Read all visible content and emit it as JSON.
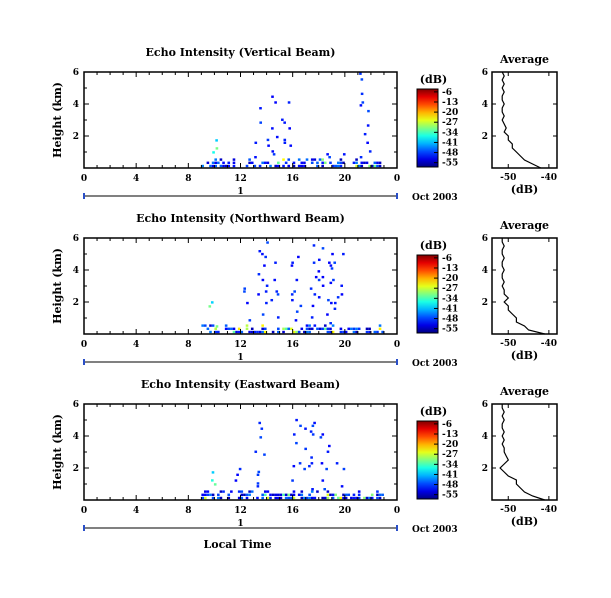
{
  "chart_data": {
    "type": "heatmap",
    "xlabel": "Local Time",
    "date_label": "Oct 2003",
    "day_label": "1",
    "x_ticks": [
      "0",
      "4",
      "8",
      "12",
      "16",
      "20",
      "0"
    ],
    "xlim": [
      0,
      24
    ],
    "ylabel": "Height (km)",
    "y_ticks": [
      "2",
      "4",
      "6"
    ],
    "ylim": [
      0,
      6
    ],
    "colorbar": {
      "unit": "(dB)",
      "ticks": [
        "-6",
        "-13",
        "-20",
        "-27",
        "-34",
        "-41",
        "-48",
        "-55"
      ],
      "range": [
        -58,
        -4
      ]
    },
    "profile": {
      "title": "Average",
      "xlabel": "(dB)",
      "x_ticks": [
        "-50",
        "-40"
      ],
      "xlim": [
        -54,
        -38
      ],
      "y_ticks": [
        "2",
        "4",
        "6"
      ],
      "ylim": [
        0,
        6
      ]
    },
    "panels": [
      {
        "title": "Echo Intensity (Vertical Beam)",
        "profile_heights": [
          0.0,
          0.25,
          0.5,
          0.75,
          1.0,
          1.25,
          1.5,
          1.75,
          2.0,
          2.25,
          2.5,
          2.75,
          3.0,
          3.25,
          3.5,
          3.75,
          4.0,
          4.25,
          4.5,
          4.75,
          5.0,
          5.25,
          5.5,
          5.75,
          6.0
        ],
        "profile_values": [
          -42,
          -44,
          -46,
          -47,
          -48,
          -49,
          -49,
          -50,
          -50,
          -51,
          -50.5,
          -51,
          -51.5,
          -51,
          -51.5,
          -51.5,
          -51,
          -51.5,
          -51.5,
          -51,
          -51.5,
          -51,
          -51.5,
          -51,
          -51.5
        ]
      },
      {
        "title": "Echo Intensity (Northward Beam)",
        "profile_heights": [
          0.0,
          0.25,
          0.5,
          0.75,
          1.0,
          1.25,
          1.5,
          1.75,
          2.0,
          2.25,
          2.5,
          2.75,
          3.0,
          3.25,
          3.5,
          3.75,
          4.0,
          4.25,
          4.5,
          4.75,
          5.0,
          5.25,
          5.5,
          5.75,
          6.0
        ],
        "profile_values": [
          -41,
          -45,
          -46,
          -48,
          -48,
          -49,
          -50,
          -50,
          -51,
          -50,
          -51,
          -51,
          -51.5,
          -51,
          -51.5,
          -51.5,
          -51,
          -51.5,
          -51.5,
          -51,
          -51.5,
          -51.5,
          -51,
          -51.5,
          -51.5
        ]
      },
      {
        "title": "Echo Intensity (Eastward Beam)",
        "profile_heights": [
          0.0,
          0.25,
          0.5,
          0.75,
          1.0,
          1.25,
          1.5,
          1.75,
          2.0,
          2.25,
          2.5,
          2.75,
          3.0,
          3.25,
          3.5,
          3.75,
          4.0,
          4.25,
          4.5,
          4.75,
          5.0,
          5.25,
          5.5,
          5.75,
          6.0
        ],
        "profile_values": [
          -41,
          -44,
          -46,
          -47,
          -48,
          -48,
          -50,
          -51,
          -52,
          -51,
          -50,
          -50.5,
          -51,
          -51,
          -51.5,
          -51,
          -51.5,
          -51,
          -51.5,
          -51.5,
          -51,
          -51.5,
          -51,
          -51.5,
          -51.5
        ]
      }
    ]
  }
}
